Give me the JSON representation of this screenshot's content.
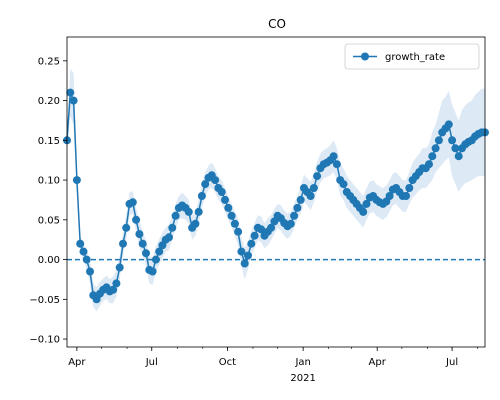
{
  "chart_data": {
    "type": "line",
    "title": "CO",
    "xlabel": "",
    "ylabel": "",
    "x_range": [
      "2020-03-20",
      "2021-08-10"
    ],
    "ylim": [
      -0.11,
      0.28
    ],
    "yticks": [
      -0.1,
      -0.05,
      0.0,
      0.05,
      0.1,
      0.15,
      0.2,
      0.25
    ],
    "ytick_labels": [
      "−0.10",
      "−0.05",
      "0.00",
      "0.05",
      "0.10",
      "0.15",
      "0.20",
      "0.25"
    ],
    "xticks": [
      {
        "date": "2020-04-01",
        "label": "Apr"
      },
      {
        "date": "2020-07-01",
        "label": "Jul"
      },
      {
        "date": "2020-10-01",
        "label": "Oct"
      },
      {
        "date": "2021-01-01",
        "label": "Jan"
      },
      {
        "date": "2021-04-01",
        "label": "Apr"
      },
      {
        "date": "2021-07-01",
        "label": "Jul"
      }
    ],
    "year_label": {
      "date": "2021-01-01",
      "label": "2021"
    },
    "grid": false,
    "legend_position": "top-right",
    "reference_line": {
      "y": 0.0,
      "style": "dashed"
    },
    "series": [
      {
        "name": "growth_rate",
        "color": "#1f77b4",
        "band_color": "#dde9f5",
        "marker": "circle",
        "x": [
          "2020-03-20",
          "2020-03-24",
          "2020-03-28",
          "2020-04-01",
          "2020-04-05",
          "2020-04-09",
          "2020-04-13",
          "2020-04-17",
          "2020-04-21",
          "2020-04-25",
          "2020-04-29",
          "2020-05-03",
          "2020-05-07",
          "2020-05-11",
          "2020-05-15",
          "2020-05-19",
          "2020-05-23",
          "2020-05-27",
          "2020-05-31",
          "2020-06-04",
          "2020-06-08",
          "2020-06-12",
          "2020-06-16",
          "2020-06-20",
          "2020-06-24",
          "2020-06-28",
          "2020-07-02",
          "2020-07-06",
          "2020-07-10",
          "2020-07-14",
          "2020-07-18",
          "2020-07-22",
          "2020-07-26",
          "2020-07-30",
          "2020-08-03",
          "2020-08-07",
          "2020-08-11",
          "2020-08-15",
          "2020-08-19",
          "2020-08-23",
          "2020-08-27",
          "2020-08-31",
          "2020-09-04",
          "2020-09-08",
          "2020-09-12",
          "2020-09-16",
          "2020-09-20",
          "2020-09-24",
          "2020-09-28",
          "2020-10-02",
          "2020-10-06",
          "2020-10-10",
          "2020-10-14",
          "2020-10-18",
          "2020-10-22",
          "2020-10-26",
          "2020-10-30",
          "2020-11-03",
          "2020-11-07",
          "2020-11-11",
          "2020-11-15",
          "2020-11-19",
          "2020-11-23",
          "2020-11-27",
          "2020-12-01",
          "2020-12-05",
          "2020-12-09",
          "2020-12-13",
          "2020-12-17",
          "2020-12-21",
          "2020-12-25",
          "2020-12-29",
          "2021-01-02",
          "2021-01-06",
          "2021-01-10",
          "2021-01-14",
          "2021-01-18",
          "2021-01-22",
          "2021-01-26",
          "2021-01-30",
          "2021-02-03",
          "2021-02-07",
          "2021-02-11",
          "2021-02-15",
          "2021-02-19",
          "2021-02-23",
          "2021-02-27",
          "2021-03-03",
          "2021-03-07",
          "2021-03-11",
          "2021-03-15",
          "2021-03-19",
          "2021-03-23",
          "2021-03-27",
          "2021-03-31",
          "2021-04-04",
          "2021-04-08",
          "2021-04-12",
          "2021-04-16",
          "2021-04-20",
          "2021-04-24",
          "2021-04-28",
          "2021-05-02",
          "2021-05-06",
          "2021-05-10",
          "2021-05-14",
          "2021-05-18",
          "2021-05-22",
          "2021-05-26",
          "2021-05-30",
          "2021-06-03",
          "2021-06-07",
          "2021-06-11",
          "2021-06-15",
          "2021-06-19",
          "2021-06-23",
          "2021-06-27",
          "2021-07-01",
          "2021-07-05",
          "2021-07-09",
          "2021-07-13",
          "2021-07-17",
          "2021-07-21",
          "2021-07-25",
          "2021-07-29",
          "2021-08-02",
          "2021-08-06",
          "2021-08-10"
        ],
        "values": [
          0.15,
          0.21,
          0.2,
          0.1,
          0.02,
          0.01,
          0.0,
          -0.015,
          -0.045,
          -0.05,
          -0.043,
          -0.038,
          -0.035,
          -0.04,
          -0.038,
          -0.03,
          -0.01,
          0.02,
          0.04,
          0.07,
          0.072,
          0.05,
          0.032,
          0.02,
          0.008,
          -0.013,
          -0.015,
          0.0,
          0.01,
          0.018,
          0.025,
          0.028,
          0.04,
          0.055,
          0.065,
          0.068,
          0.065,
          0.06,
          0.04,
          0.045,
          0.06,
          0.08,
          0.095,
          0.103,
          0.106,
          0.1,
          0.09,
          0.085,
          0.075,
          0.065,
          0.055,
          0.045,
          0.035,
          0.01,
          -0.005,
          0.005,
          0.02,
          0.03,
          0.04,
          0.038,
          0.03,
          0.035,
          0.04,
          0.048,
          0.055,
          0.052,
          0.046,
          0.042,
          0.045,
          0.055,
          0.065,
          0.075,
          0.09,
          0.085,
          0.08,
          0.09,
          0.105,
          0.115,
          0.12,
          0.122,
          0.125,
          0.13,
          0.12,
          0.1,
          0.095,
          0.085,
          0.08,
          0.075,
          0.07,
          0.065,
          0.06,
          0.07,
          0.078,
          0.08,
          0.075,
          0.072,
          0.07,
          0.073,
          0.08,
          0.088,
          0.09,
          0.085,
          0.08,
          0.08,
          0.09,
          0.1,
          0.105,
          0.11,
          0.115,
          0.115,
          0.12,
          0.13,
          0.14,
          0.15,
          0.16,
          0.165,
          0.17,
          0.15,
          0.14,
          0.13,
          0.14,
          0.145,
          0.148,
          0.15,
          0.155,
          0.158,
          0.16,
          0.16
        ],
        "lower": [
          0.14,
          0.18,
          0.17,
          0.085,
          0.01,
          0.0,
          -0.012,
          -0.03,
          -0.06,
          -0.065,
          -0.058,
          -0.052,
          -0.05,
          -0.055,
          -0.055,
          -0.047,
          -0.025,
          0.005,
          0.025,
          0.055,
          0.058,
          0.035,
          0.015,
          0.005,
          -0.008,
          -0.03,
          -0.032,
          -0.016,
          -0.006,
          0.002,
          0.01,
          0.012,
          0.025,
          0.04,
          0.05,
          0.052,
          0.05,
          0.045,
          0.025,
          0.03,
          0.045,
          0.065,
          0.08,
          0.088,
          0.09,
          0.085,
          0.075,
          0.07,
          0.06,
          0.05,
          0.04,
          0.03,
          0.018,
          -0.008,
          -0.025,
          -0.012,
          0.004,
          0.014,
          0.024,
          0.022,
          0.014,
          0.018,
          0.024,
          0.032,
          0.04,
          0.036,
          0.03,
          0.026,
          0.03,
          0.04,
          0.05,
          0.058,
          0.073,
          0.068,
          0.062,
          0.072,
          0.087,
          0.097,
          0.102,
          0.104,
          0.106,
          0.11,
          0.1,
          0.08,
          0.075,
          0.065,
          0.06,
          0.055,
          0.05,
          0.045,
          0.04,
          0.05,
          0.058,
          0.06,
          0.055,
          0.052,
          0.05,
          0.053,
          0.06,
          0.068,
          0.07,
          0.065,
          0.06,
          0.06,
          0.07,
          0.078,
          0.082,
          0.087,
          0.09,
          0.09,
          0.095,
          0.1,
          0.11,
          0.115,
          0.12,
          0.125,
          0.128,
          0.105,
          0.095,
          0.085,
          0.092,
          0.096,
          0.098,
          0.1,
          0.103,
          0.105,
          0.105,
          0.105
        ],
        "upper": [
          0.16,
          0.24,
          0.235,
          0.115,
          0.03,
          0.02,
          0.012,
          0.0,
          -0.03,
          -0.035,
          -0.028,
          -0.024,
          -0.02,
          -0.025,
          -0.021,
          -0.013,
          0.005,
          0.035,
          0.055,
          0.085,
          0.086,
          0.065,
          0.049,
          0.035,
          0.024,
          0.004,
          0.002,
          0.016,
          0.026,
          0.034,
          0.04,
          0.044,
          0.055,
          0.07,
          0.08,
          0.084,
          0.08,
          0.075,
          0.055,
          0.06,
          0.075,
          0.095,
          0.11,
          0.118,
          0.122,
          0.115,
          0.105,
          0.1,
          0.09,
          0.08,
          0.07,
          0.06,
          0.052,
          0.028,
          0.015,
          0.022,
          0.036,
          0.046,
          0.056,
          0.054,
          0.046,
          0.052,
          0.056,
          0.064,
          0.07,
          0.068,
          0.062,
          0.058,
          0.06,
          0.07,
          0.08,
          0.092,
          0.107,
          0.102,
          0.098,
          0.108,
          0.123,
          0.133,
          0.138,
          0.14,
          0.144,
          0.15,
          0.14,
          0.12,
          0.115,
          0.105,
          0.1,
          0.095,
          0.09,
          0.085,
          0.08,
          0.09,
          0.098,
          0.1,
          0.095,
          0.092,
          0.09,
          0.093,
          0.1,
          0.108,
          0.11,
          0.105,
          0.1,
          0.1,
          0.11,
          0.122,
          0.128,
          0.133,
          0.14,
          0.14,
          0.145,
          0.16,
          0.17,
          0.185,
          0.2,
          0.205,
          0.212,
          0.195,
          0.185,
          0.175,
          0.188,
          0.194,
          0.198,
          0.2,
          0.207,
          0.211,
          0.215,
          0.215
        ]
      }
    ]
  }
}
